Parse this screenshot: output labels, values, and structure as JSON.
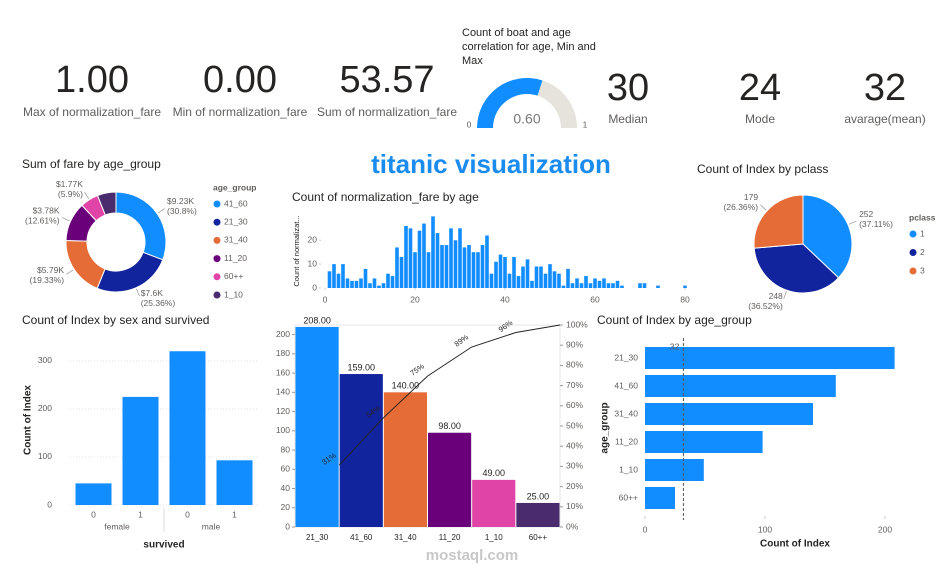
{
  "title": "titanic visualization",
  "watermark": "mostaql.com",
  "cards": [
    {
      "value": "1.00",
      "label": "Max of normalization_fare"
    },
    {
      "value": "0.00",
      "label": "Min of normalization_fare"
    },
    {
      "value": "53.57",
      "label": "Sum of normalization_fare"
    },
    {
      "value": "30",
      "label": "Median"
    },
    {
      "value": "24",
      "label": "Mode"
    },
    {
      "value": "32",
      "label": "avarage(mean)"
    }
  ],
  "chart_data": [
    {
      "type": "gauge",
      "title": "Count of boat and age correlation for age, Min and Max",
      "value": 0.6,
      "value_label": "0.60",
      "min": 0,
      "max": 1,
      "color": "#118DFF",
      "track_color": "#E6E2DC"
    },
    {
      "type": "donut",
      "title": "Sum of fare by age_group",
      "legend_title": "age_group",
      "categories": [
        "41_60",
        "21_30",
        "31_40",
        "11_20",
        "60++",
        "1_10"
      ],
      "values": [
        9230,
        7600,
        5790,
        3780,
        1770,
        1800
      ],
      "value_labels": [
        "$9.23K",
        "$7.6K",
        "$5.79K",
        "$3.78K",
        "$1.77K",
        null
      ],
      "percent_labels": [
        "(30.8%)",
        "(25.36%)",
        "(19.33%)",
        "(12.61%)",
        "(5.9%)",
        null
      ],
      "colors": [
        "#118DFF",
        "#12239E",
        "#E66C37",
        "#6B007B",
        "#E044A7",
        "#4A2C6E"
      ]
    },
    {
      "type": "bar",
      "title": "Count of normalization_fare by age",
      "y_label": "Count of normalizat...",
      "color": "#118DFF",
      "x": [
        1,
        2,
        3,
        4,
        5,
        6,
        7,
        8,
        9,
        10,
        11,
        12,
        13,
        14,
        15,
        16,
        17,
        18,
        19,
        20,
        21,
        22,
        23,
        24,
        25,
        26,
        27,
        28,
        29,
        30,
        31,
        32,
        33,
        34,
        35,
        36,
        37,
        38,
        39,
        40,
        41,
        42,
        43,
        44,
        45,
        46,
        47,
        48,
        49,
        50,
        51,
        52,
        53,
        54,
        55,
        56,
        57,
        58,
        59,
        60,
        61,
        62,
        63,
        64,
        65,
        66,
        70,
        71,
        74,
        80
      ],
      "values": [
        7,
        10,
        6,
        10,
        4,
        3,
        3,
        4,
        8,
        2,
        4,
        1,
        2,
        6,
        5,
        17,
        13,
        26,
        25,
        15,
        24,
        27,
        15,
        30,
        23,
        18,
        18,
        25,
        20,
        25,
        17,
        18,
        15,
        15,
        18,
        22,
        6,
        11,
        14,
        13,
        6,
        13,
        5,
        9,
        12,
        3,
        9,
        9,
        6,
        10,
        7,
        6,
        1,
        8,
        2,
        4,
        2,
        5,
        2,
        4,
        3,
        4,
        2,
        2,
        3,
        1,
        2,
        2,
        1,
        1
      ],
      "xlim": [
        0,
        80
      ],
      "xticks": [
        0,
        20,
        40,
        60,
        80
      ],
      "ylim": [
        0,
        31
      ],
      "yticks": [
        0,
        10,
        20
      ]
    },
    {
      "type": "pie",
      "title": "Count of Index by pclass",
      "legend_title": "pclass",
      "categories": [
        "1",
        "2",
        "3"
      ],
      "values": [
        252,
        248,
        179
      ],
      "value_labels": [
        "252",
        "248",
        "179"
      ],
      "percent_labels": [
        "(37.11%)",
        "(36.52%)",
        "(26.36%)"
      ],
      "colors": [
        "#118DFF",
        "#12239E",
        "#E66C37"
      ]
    },
    {
      "type": "column",
      "title": "Count of Index by sex and survived",
      "y_label": "Count of Index",
      "x_label": "survived",
      "color": "#118DFF",
      "categories": [
        "0",
        "1",
        "0",
        "1"
      ],
      "groups": [
        "female",
        "female",
        "male",
        "male"
      ],
      "values": [
        45,
        225,
        320,
        93
      ],
      "ylim": [
        0,
        333
      ],
      "yticks": [
        0,
        100,
        200,
        300
      ],
      "grid": true
    },
    {
      "type": "pareto",
      "categories": [
        "21_30",
        "41_60",
        "31_40",
        "11_20",
        "1_10",
        "60++"
      ],
      "values": [
        208,
        159,
        140,
        98,
        49,
        25
      ],
      "value_labels": [
        "208.00",
        "159.00",
        "140.00",
        "98.00",
        "49.00",
        "25.00"
      ],
      "colors": [
        "#118DFF",
        "#12239E",
        "#E66C37",
        "#6B007B",
        "#E044A7",
        "#4A2C6E"
      ],
      "ylim": [
        0,
        210
      ],
      "yticks": [
        0,
        20,
        40,
        60,
        80,
        100,
        120,
        140,
        160,
        180,
        200
      ],
      "y2lim": [
        0,
        100
      ],
      "y2ticks": [
        {
          "value": 0,
          "label": "0%"
        },
        {
          "value": 10,
          "label": "10%"
        },
        {
          "value": 20,
          "label": "20%"
        },
        {
          "value": 30,
          "label": "30%"
        },
        {
          "value": 40,
          "label": "40%"
        },
        {
          "value": 50,
          "label": "50%"
        },
        {
          "value": 60,
          "label": "60%"
        },
        {
          "value": 70,
          "label": "70%"
        },
        {
          "value": 80,
          "label": "80%"
        },
        {
          "value": 90,
          "label": "90%"
        },
        {
          "value": 100,
          "label": "100%"
        }
      ],
      "line": {
        "axis": "y2",
        "color": "#252423",
        "values": [
          30.6,
          54.0,
          74.7,
          89.1,
          96.3,
          100
        ],
        "value_labels": [
          "31%",
          "54%",
          "75%",
          "89%",
          "96%",
          null
        ]
      }
    },
    {
      "type": "barh",
      "title": "Count of Index by age_group",
      "y_label": "age_group",
      "x_label": "Count of Index",
      "color": "#118DFF",
      "categories": [
        "21_30",
        "41_60",
        "31_40",
        "11_20",
        "1_10",
        "60++"
      ],
      "values": [
        208,
        159,
        140,
        98,
        49,
        25
      ],
      "xlim": [
        0,
        210
      ],
      "xticks": [
        0,
        100,
        200
      ],
      "reference": 32
    }
  ]
}
